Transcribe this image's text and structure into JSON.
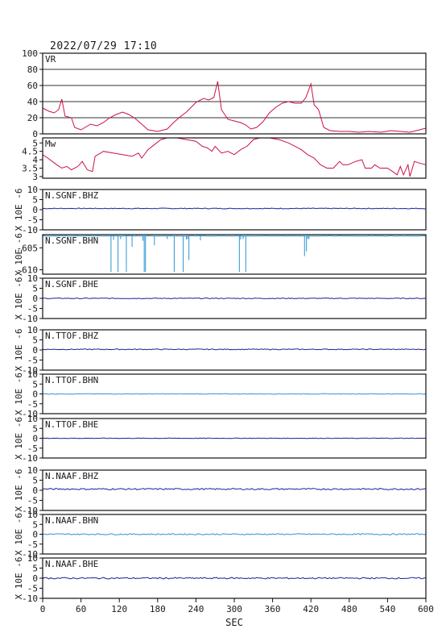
{
  "header": {
    "timestamp": "2022/07/29 17:10"
  },
  "chart_data": {
    "type": "line",
    "xlabel": "SEC",
    "xlim": [
      0,
      600
    ],
    "x_ticks": [
      0,
      60,
      120,
      180,
      240,
      300,
      360,
      420,
      480,
      540,
      600
    ],
    "panels": [
      {
        "name": "VR",
        "ylim": [
          0,
          100
        ],
        "yticks": [
          0,
          20,
          40,
          60,
          80,
          100
        ],
        "ylabel": "",
        "grid": true,
        "color": "#cc1144",
        "points": [
          [
            0,
            32
          ],
          [
            10,
            28
          ],
          [
            18,
            26
          ],
          [
            25,
            30
          ],
          [
            30,
            43
          ],
          [
            35,
            22
          ],
          [
            45,
            20
          ],
          [
            50,
            8
          ],
          [
            60,
            5
          ],
          [
            75,
            12
          ],
          [
            85,
            10
          ],
          [
            95,
            14
          ],
          [
            105,
            20
          ],
          [
            115,
            24
          ],
          [
            125,
            27
          ],
          [
            135,
            24
          ],
          [
            145,
            19
          ],
          [
            155,
            12
          ],
          [
            165,
            5
          ],
          [
            180,
            3
          ],
          [
            195,
            6
          ],
          [
            205,
            14
          ],
          [
            215,
            21
          ],
          [
            225,
            27
          ],
          [
            240,
            39
          ],
          [
            252,
            44
          ],
          [
            260,
            42
          ],
          [
            268,
            45
          ],
          [
            274,
            65
          ],
          [
            280,
            30
          ],
          [
            290,
            18
          ],
          [
            300,
            16
          ],
          [
            310,
            14
          ],
          [
            318,
            11
          ],
          [
            326,
            6
          ],
          [
            335,
            8
          ],
          [
            345,
            15
          ],
          [
            355,
            26
          ],
          [
            365,
            33
          ],
          [
            375,
            38
          ],
          [
            385,
            40
          ],
          [
            395,
            38
          ],
          [
            405,
            38
          ],
          [
            412,
            45
          ],
          [
            420,
            62
          ],
          [
            425,
            36
          ],
          [
            432,
            30
          ],
          [
            440,
            8
          ],
          [
            450,
            4
          ],
          [
            465,
            3
          ],
          [
            480,
            3
          ],
          [
            495,
            2
          ],
          [
            510,
            3
          ],
          [
            530,
            2
          ],
          [
            545,
            4
          ],
          [
            560,
            3
          ],
          [
            575,
            2
          ],
          [
            590,
            5
          ],
          [
            600,
            7
          ]
        ]
      },
      {
        "name": "Mw",
        "ylim": [
          2.9,
          5.3
        ],
        "yticks": [
          3.0,
          3.5,
          4.0,
          4.5,
          5.0
        ],
        "ylabel": "",
        "grid": false,
        "color": "#cc1144",
        "points": [
          [
            0,
            4.3
          ],
          [
            8,
            4.1
          ],
          [
            15,
            3.9
          ],
          [
            22,
            3.7
          ],
          [
            30,
            3.5
          ],
          [
            38,
            3.6
          ],
          [
            45,
            3.4
          ],
          [
            55,
            3.6
          ],
          [
            62,
            3.9
          ],
          [
            70,
            3.4
          ],
          [
            78,
            3.3
          ],
          [
            82,
            4.2
          ],
          [
            95,
            4.5
          ],
          [
            110,
            4.4
          ],
          [
            125,
            4.3
          ],
          [
            140,
            4.2
          ],
          [
            150,
            4.4
          ],
          [
            155,
            4.1
          ],
          [
            165,
            4.6
          ],
          [
            175,
            4.9
          ],
          [
            185,
            5.2
          ],
          [
            195,
            5.3
          ],
          [
            210,
            5.3
          ],
          [
            225,
            5.2
          ],
          [
            240,
            5.1
          ],
          [
            250,
            4.8
          ],
          [
            258,
            4.7
          ],
          [
            265,
            4.5
          ],
          [
            270,
            4.8
          ],
          [
            280,
            4.4
          ],
          [
            290,
            4.5
          ],
          [
            300,
            4.3
          ],
          [
            310,
            4.6
          ],
          [
            320,
            4.8
          ],
          [
            330,
            5.2
          ],
          [
            340,
            5.3
          ],
          [
            355,
            5.3
          ],
          [
            370,
            5.2
          ],
          [
            385,
            5.0
          ],
          [
            395,
            4.8
          ],
          [
            405,
            4.6
          ],
          [
            415,
            4.3
          ],
          [
            425,
            4.1
          ],
          [
            435,
            3.7
          ],
          [
            445,
            3.5
          ],
          [
            455,
            3.5
          ],
          [
            465,
            3.9
          ],
          [
            470,
            3.7
          ],
          [
            478,
            3.7
          ],
          [
            490,
            3.9
          ],
          [
            500,
            4.0
          ],
          [
            505,
            3.5
          ],
          [
            515,
            3.5
          ],
          [
            520,
            3.7
          ],
          [
            528,
            3.5
          ],
          [
            540,
            3.5
          ],
          [
            548,
            3.3
          ],
          [
            555,
            3.1
          ],
          [
            560,
            3.6
          ],
          [
            565,
            3.1
          ],
          [
            572,
            3.7
          ],
          [
            575,
            3.0
          ],
          [
            582,
            3.9
          ],
          [
            590,
            3.8
          ],
          [
            600,
            3.7
          ]
        ]
      },
      {
        "name": "N.SGNF.BHZ",
        "ylim": [
          -10,
          10
        ],
        "yticks": [
          -10,
          -5,
          0,
          5,
          10
        ],
        "ylabel": "X 10E -6",
        "grid": false,
        "color": "#1a2299",
        "baseline": 0.6,
        "noise": 0.2
      },
      {
        "name": "N.SGNF.BHN",
        "ylim": [
          -611,
          -602
        ],
        "yticks": [
          -610,
          -605
        ],
        "ylabel": "X 10E -6",
        "grid": false,
        "color": "#2a95d5",
        "baseline": -602.3,
        "noise": 0.05,
        "spikes": [
          [
            107,
            -610.5
          ],
          [
            111,
            -603.2
          ],
          [
            118,
            -610.5
          ],
          [
            122,
            -603.0
          ],
          [
            131,
            -610.5
          ],
          [
            140,
            -604.8
          ],
          [
            157,
            -603.4
          ],
          [
            159,
            -610.5
          ],
          [
            161,
            -610.5
          ],
          [
            175,
            -604.4
          ],
          [
            195,
            -603.0
          ],
          [
            206,
            -610.5
          ],
          [
            220,
            -610.5
          ],
          [
            225,
            -603.1
          ],
          [
            227,
            -603.0
          ],
          [
            229,
            -607.8
          ],
          [
            247,
            -603.3
          ],
          [
            308,
            -610.5
          ],
          [
            310,
            -603.1
          ],
          [
            314,
            -603.0
          ],
          [
            318,
            -610.5
          ],
          [
            410,
            -606.9
          ],
          [
            413,
            -605.8
          ],
          [
            415,
            -603.0
          ],
          [
            417,
            -603.0
          ]
        ]
      },
      {
        "name": "N.SGNF.BHE",
        "ylim": [
          -10,
          10
        ],
        "yticks": [
          -10,
          -5,
          0,
          5,
          10
        ],
        "ylabel": "X 10E -6",
        "grid": false,
        "color": "#1a2299",
        "baseline": 0.0,
        "noise": 0.2
      },
      {
        "name": "N.TTOF.BHZ",
        "ylim": [
          -10,
          10
        ],
        "yticks": [
          -10,
          -5,
          0,
          5,
          10
        ],
        "ylabel": "X 10E -6",
        "grid": false,
        "color": "#1a2299",
        "baseline": 0.3,
        "noise": 0.2
      },
      {
        "name": "N.TTOF.BHN",
        "ylim": [
          -10,
          10
        ],
        "yticks": [
          -10,
          -5,
          0,
          5,
          10
        ],
        "ylabel": "X 10E -6",
        "grid": false,
        "color": "#2a95d5",
        "baseline": 0.0,
        "noise": 0.15
      },
      {
        "name": "N.TTOF.BHE",
        "ylim": [
          -10,
          10
        ],
        "yticks": [
          -10,
          -5,
          0,
          5,
          10
        ],
        "ylabel": "X 10E -6",
        "grid": false,
        "color": "#1a2299",
        "baseline": 0.0,
        "noise": 0.15
      },
      {
        "name": "N.NAAF.BHZ",
        "ylim": [
          -10,
          10
        ],
        "yticks": [
          -10,
          -5,
          0,
          5,
          10
        ],
        "ylabel": "X 10E -6",
        "grid": false,
        "color": "#1a2299",
        "baseline": 0.6,
        "noise": 0.35
      },
      {
        "name": "N.NAAF.BHN",
        "ylim": [
          -10,
          10
        ],
        "yticks": [
          -10,
          -5,
          0,
          5,
          10
        ],
        "ylabel": "X 10E -6",
        "grid": false,
        "color": "#2a95d5",
        "baseline": 0.0,
        "noise": 0.3
      },
      {
        "name": "N.NAAF.BHE",
        "ylim": [
          -10,
          10
        ],
        "yticks": [
          -10,
          -5,
          0,
          5,
          10
        ],
        "ylabel": "X 10E -6",
        "grid": false,
        "color": "#1a2299",
        "baseline": 0.0,
        "noise": 0.35
      }
    ]
  }
}
